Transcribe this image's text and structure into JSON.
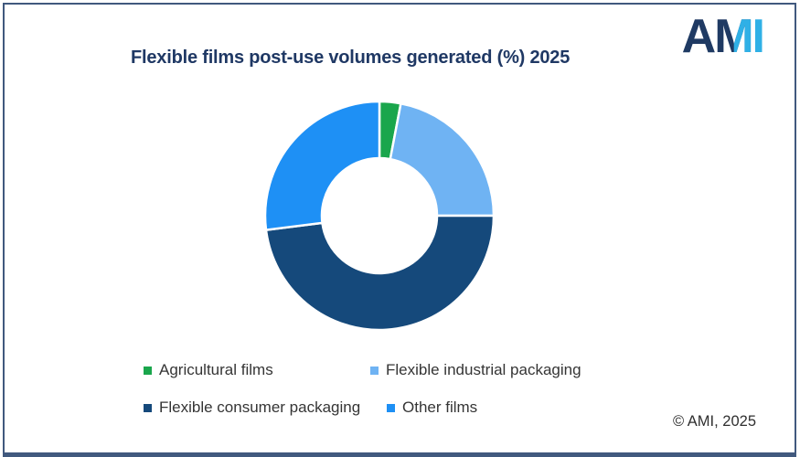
{
  "window": {
    "background": "#FFFFFF",
    "frame_border_color": "#41597E"
  },
  "header": {
    "title": "Flexible films post-use volumes generated (%) 2025",
    "title_color": "#1F3864",
    "logo": {
      "letter_a": "A",
      "letter_m": "M",
      "letter_i": "I",
      "dark_color": "#1F3A63",
      "light_color": "#2FB0E6"
    }
  },
  "chart_data": {
    "type": "pie",
    "variant": "donut",
    "title": "Flexible films post-use volumes generated (%) 2025",
    "unit": "%",
    "categories": [
      "Agricultural films",
      "Flexible industrial packaging",
      "Flexible consumer packaging",
      "Other films"
    ],
    "values": [
      3,
      22,
      48,
      27
    ],
    "colors": [
      "#1AA64C",
      "#6FB3F3",
      "#15497B",
      "#1E90F5"
    ],
    "start_angle_deg": 0,
    "direction": "clockwise",
    "inner_radius_ratio": 0.5,
    "separator_color": "#FFFFFF",
    "legend_position": "bottom",
    "data_labels": false
  },
  "legend": {
    "items": [
      {
        "label": "Agricultural films",
        "color": "#1AA64C"
      },
      {
        "label": "Flexible industrial packaging",
        "color": "#6FB3F3"
      },
      {
        "label": "Flexible consumer packaging",
        "color": "#15497B"
      },
      {
        "label": "Other films",
        "color": "#1E90F5"
      }
    ]
  },
  "footer": {
    "copyright": "© AMI, 2025"
  }
}
